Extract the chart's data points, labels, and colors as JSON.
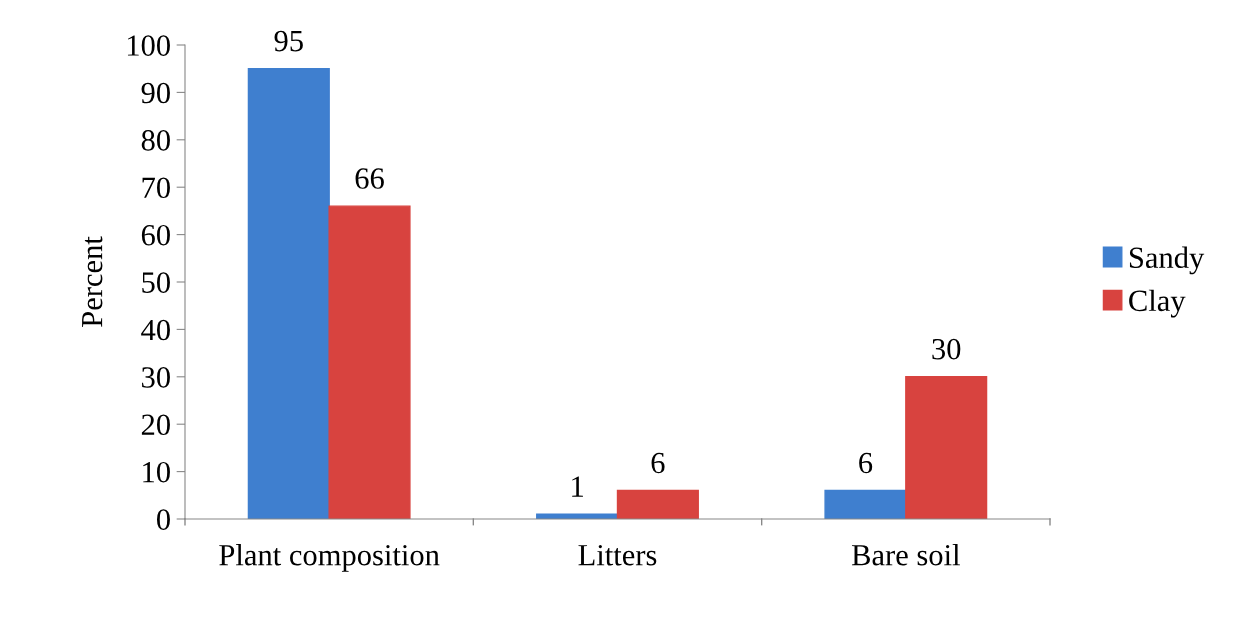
{
  "chart_data": {
    "type": "bar",
    "ylabel": "Percent",
    "categories": [
      "Plant composition",
      "Litters",
      "Bare soil"
    ],
    "series": [
      {
        "name": "Sandy",
        "color": "#3f7fcf",
        "values": [
          95,
          1,
          6
        ]
      },
      {
        "name": "Clay",
        "color": "#d8433f",
        "values": [
          66,
          6,
          30
        ]
      }
    ],
    "ylim": [
      0,
      100
    ],
    "yticks": [
      0,
      10,
      20,
      30,
      40,
      50,
      60,
      70,
      80,
      90,
      100
    ],
    "grid": false,
    "legend": "right",
    "data_labels": true
  }
}
